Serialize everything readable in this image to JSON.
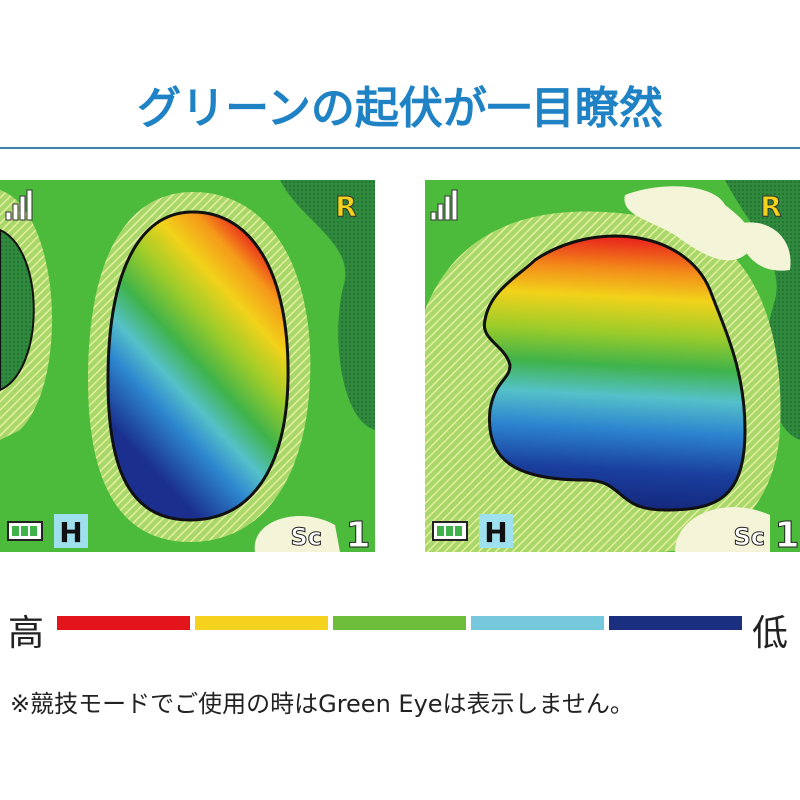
{
  "title": "グリーンの起伏が一目瞭然",
  "screens": [
    {
      "wind": "R",
      "mode": "H",
      "score_mark": "Sc",
      "hole": "1"
    },
    {
      "wind": "R",
      "mode": "H",
      "score_mark": "Sc",
      "hole": "1"
    }
  ],
  "legend": {
    "high": "高",
    "low": "低"
  },
  "note": "※競技モードでご使用の時はGreen Eyeは表示しません。"
}
